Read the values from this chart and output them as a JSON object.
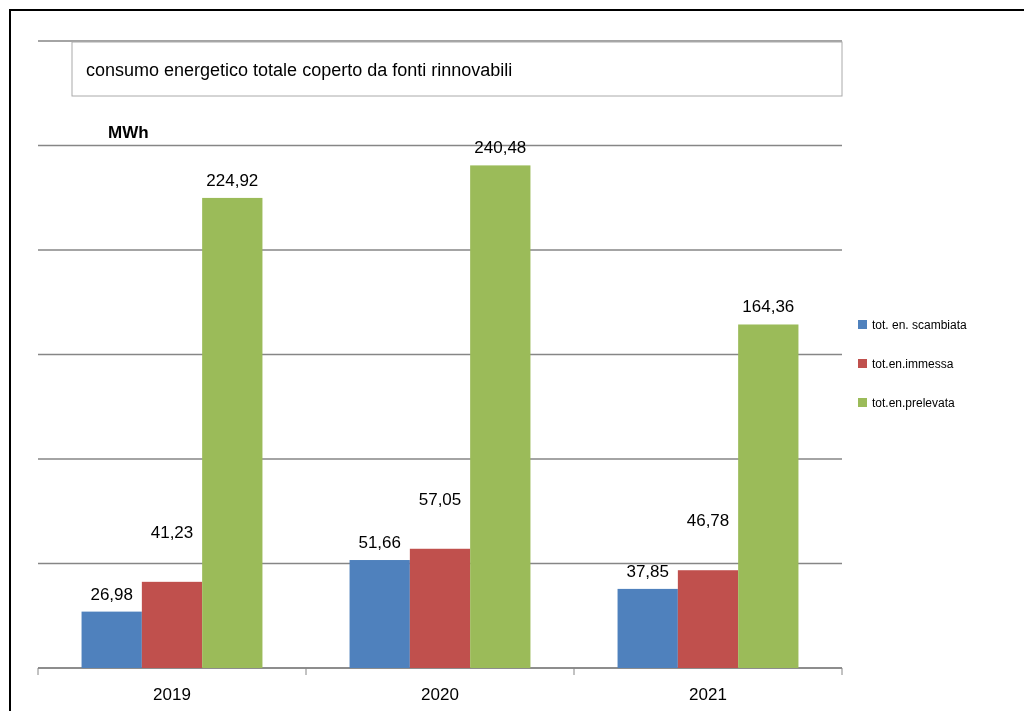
{
  "chart_data": {
    "type": "bar",
    "title": "consumo energetico totale coperto da fonti rinnovabili",
    "ylabel": "MWh",
    "categories": [
      "2019",
      "2020",
      "2021"
    ],
    "series": [
      {
        "name": "tot. en. scambiata",
        "color": "#4f81bd",
        "values": [
          26.98,
          51.66,
          37.85
        ],
        "value_labels": [
          "26,98",
          "51,66",
          "37,85"
        ]
      },
      {
        "name": "tot.en.immessa",
        "color": "#c0504d",
        "values": [
          41.23,
          57.05,
          46.78
        ],
        "value_labels": [
          "41,23",
          "57,05",
          "46,78"
        ]
      },
      {
        "name": "tot.en.prelevata",
        "color": "#9bbb59",
        "values": [
          224.92,
          240.48,
          164.36
        ],
        "value_labels": [
          "224,92",
          "240,48",
          "164,36"
        ]
      }
    ],
    "ylim": [
      0,
      300
    ],
    "yticks": [
      {
        "value": 0,
        "label": null
      },
      {
        "value": 50,
        "label": null
      },
      {
        "value": 100,
        "label": null
      },
      {
        "value": 150,
        "label": null
      },
      {
        "value": 200,
        "label": null
      },
      {
        "value": 250,
        "label": null
      },
      {
        "value": 300,
        "label": null
      }
    ],
    "grid": "y",
    "legend": "right",
    "tick_labels": "x"
  }
}
